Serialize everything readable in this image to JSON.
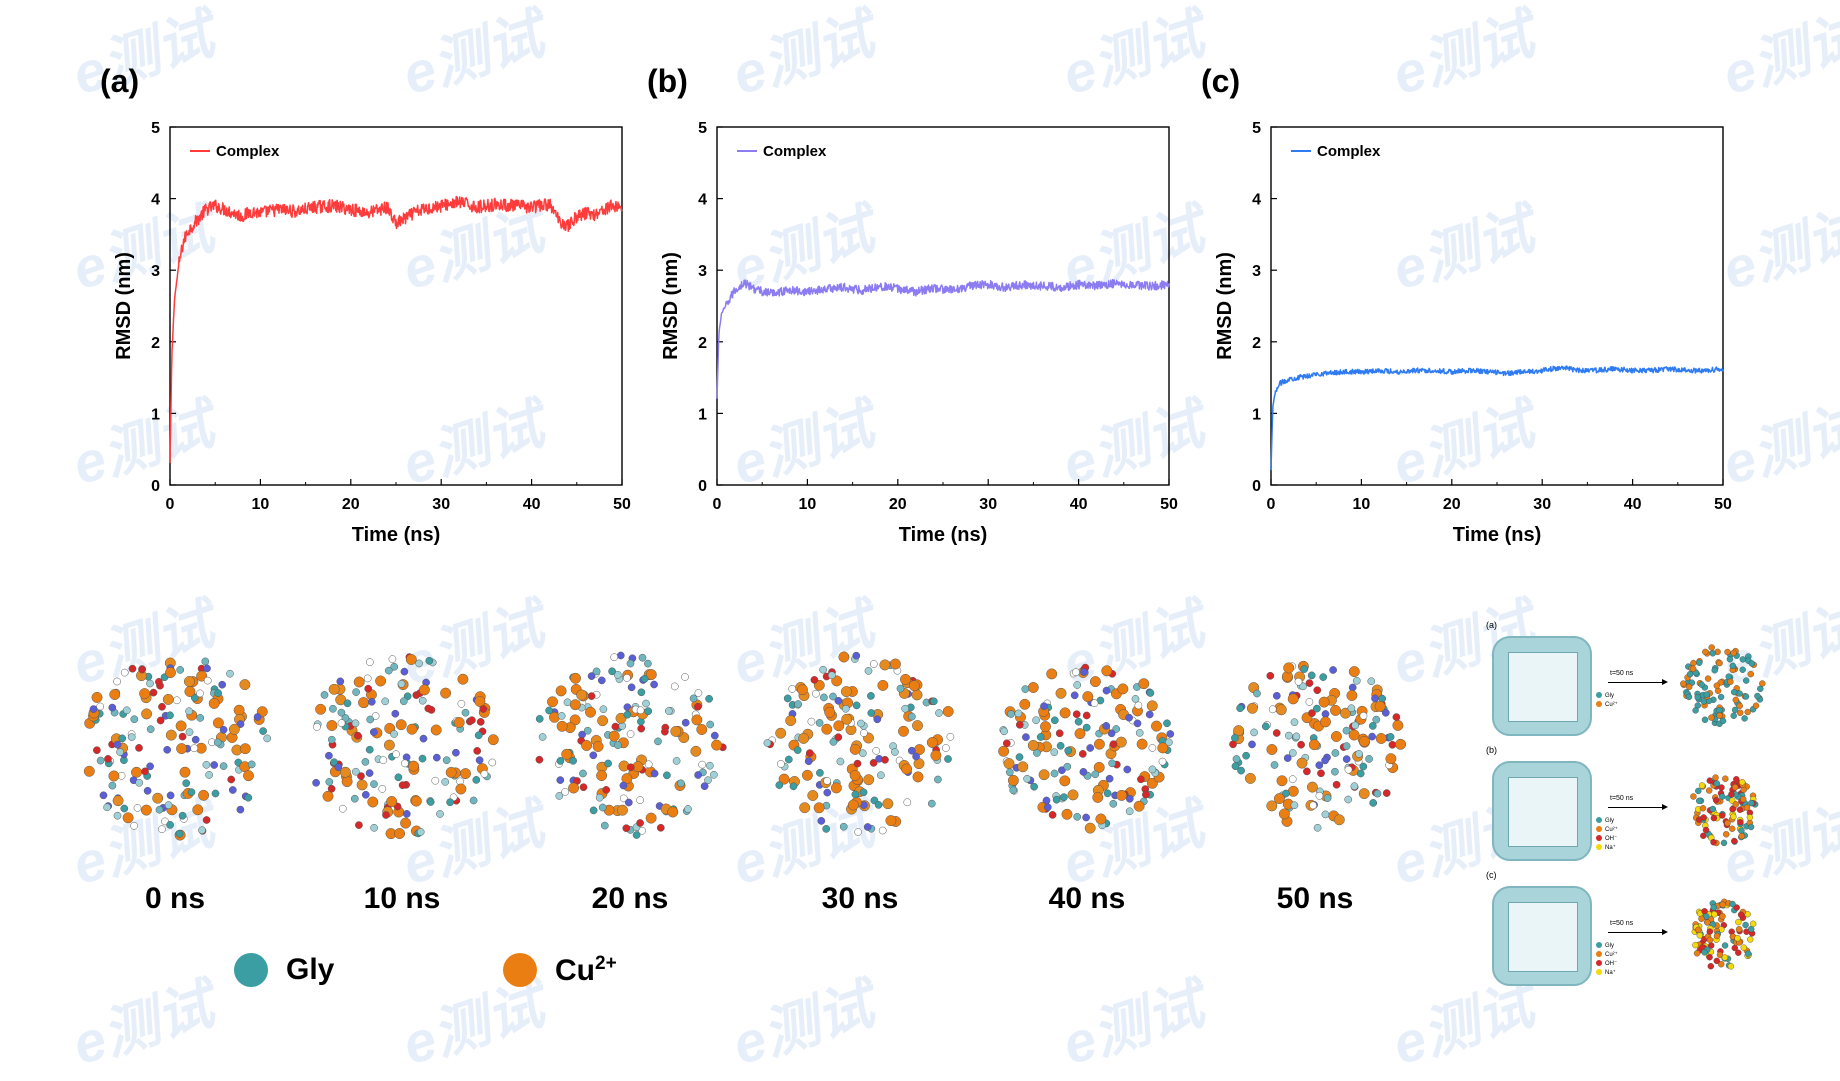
{
  "chart_data": [
    {
      "type": "line",
      "panel_label": "(a)",
      "xlabel": "Time (ns)",
      "ylabel": "RMSD (nm)",
      "xlim": [
        0,
        50
      ],
      "ylim": [
        0,
        5
      ],
      "xticks": [
        0,
        10,
        20,
        30,
        40,
        50
      ],
      "yticks": [
        0,
        1,
        2,
        3,
        4,
        5
      ],
      "legend_position": "top-left",
      "series": [
        {
          "name": "Complex",
          "color": "#ff3b3b",
          "x": [
            0,
            0.2,
            0.5,
            1,
            1.5,
            2,
            3,
            4,
            5,
            6,
            7,
            8,
            9,
            10,
            12,
            14,
            16,
            18,
            20,
            22,
            24,
            25,
            26,
            27,
            28,
            30,
            32,
            34,
            36,
            38,
            40,
            42,
            43,
            44,
            45,
            46,
            47,
            48,
            49,
            50
          ],
          "y": [
            0.3,
            1.8,
            2.6,
            3.1,
            3.4,
            3.55,
            3.7,
            3.85,
            3.9,
            3.85,
            3.8,
            3.75,
            3.82,
            3.8,
            3.85,
            3.82,
            3.88,
            3.9,
            3.85,
            3.8,
            3.88,
            3.65,
            3.72,
            3.8,
            3.85,
            3.9,
            3.95,
            3.88,
            3.92,
            3.9,
            3.88,
            3.92,
            3.7,
            3.62,
            3.75,
            3.8,
            3.78,
            3.85,
            3.9,
            3.88
          ]
        }
      ]
    },
    {
      "type": "line",
      "panel_label": "(b)",
      "xlabel": "Time (ns)",
      "ylabel": "RMSD (nm)",
      "xlim": [
        0,
        50
      ],
      "ylim": [
        0,
        5
      ],
      "xticks": [
        0,
        10,
        20,
        30,
        40,
        50
      ],
      "yticks": [
        0,
        1,
        2,
        3,
        4,
        5
      ],
      "legend_position": "top-left",
      "series": [
        {
          "name": "Complex",
          "color": "#8c7cf2",
          "x": [
            0,
            0.2,
            0.5,
            1,
            1.5,
            2,
            3,
            4,
            5,
            6,
            8,
            10,
            12,
            14,
            16,
            18,
            20,
            22,
            24,
            26,
            28,
            30,
            32,
            34,
            36,
            38,
            40,
            42,
            44,
            46,
            48,
            50
          ],
          "y": [
            1.2,
            2.1,
            2.4,
            2.5,
            2.62,
            2.72,
            2.82,
            2.75,
            2.7,
            2.68,
            2.72,
            2.7,
            2.74,
            2.76,
            2.72,
            2.78,
            2.74,
            2.7,
            2.75,
            2.72,
            2.78,
            2.8,
            2.76,
            2.8,
            2.78,
            2.76,
            2.8,
            2.78,
            2.82,
            2.8,
            2.78,
            2.8
          ]
        }
      ]
    },
    {
      "type": "line",
      "panel_label": "(c)",
      "xlabel": "Time (ns)",
      "ylabel": "RMSD (nm)",
      "xlim": [
        0,
        50
      ],
      "ylim": [
        0,
        5
      ],
      "xticks": [
        0,
        10,
        20,
        30,
        40,
        50
      ],
      "yticks": [
        0,
        1,
        2,
        3,
        4,
        5
      ],
      "legend_position": "top-left",
      "series": [
        {
          "name": "Complex",
          "color": "#2f7bf2",
          "x": [
            0,
            0.2,
            0.5,
            1,
            2,
            3,
            4,
            5,
            6,
            8,
            10,
            12,
            14,
            16,
            18,
            20,
            22,
            24,
            26,
            28,
            30,
            32,
            34,
            36,
            38,
            40,
            42,
            44,
            46,
            48,
            50
          ],
          "y": [
            0.2,
            1.1,
            1.3,
            1.42,
            1.48,
            1.5,
            1.52,
            1.55,
            1.56,
            1.58,
            1.58,
            1.6,
            1.58,
            1.6,
            1.6,
            1.58,
            1.6,
            1.58,
            1.56,
            1.58,
            1.6,
            1.64,
            1.6,
            1.6,
            1.62,
            1.6,
            1.6,
            1.62,
            1.6,
            1.6,
            1.62
          ]
        }
      ]
    }
  ],
  "snapshots": {
    "labels": [
      "0 ns",
      "10 ns",
      "20 ns",
      "30 ns",
      "40 ns",
      "50 ns"
    ]
  },
  "legend": {
    "gly": {
      "label": "Gly",
      "color": "#3a9ea2"
    },
    "cu": {
      "label": "Cu",
      "superscript": "2+",
      "color": "#ea7e13"
    }
  },
  "inset": {
    "rows": [
      {
        "letter": "(a)",
        "arrow_label": "t=50 ns",
        "legend": [
          "Gly",
          "Cu²⁺"
        ]
      },
      {
        "letter": "(b)",
        "arrow_label": "t=50 ns",
        "legend": [
          "Gly",
          "Cu²⁺",
          "OH⁻",
          "Na⁺"
        ]
      },
      {
        "letter": "(c)",
        "arrow_label": "t=50 ns",
        "legend": [
          "Gly",
          "Cu²⁺",
          "OH⁻",
          "Na⁺"
        ]
      }
    ],
    "legend_colors": [
      "#3a9ea2",
      "#ea7e13",
      "#d62828",
      "#f5d90a"
    ]
  },
  "watermark": {
    "text": "e测试"
  }
}
